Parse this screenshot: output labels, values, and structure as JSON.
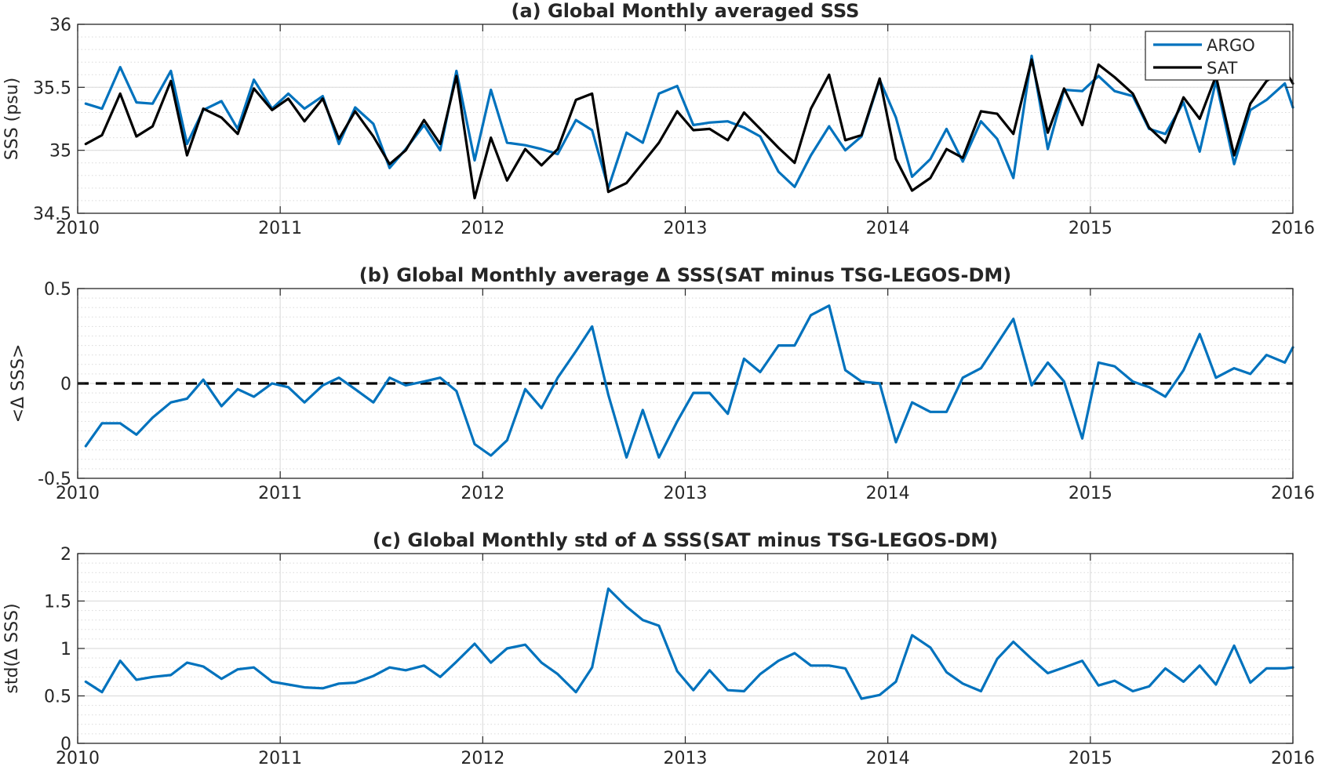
{
  "chart_data": [
    {
      "type": "line",
      "title": "(a) Global Monthly averaged SSS",
      "ylabel": "SSS (psu)",
      "xlabel": "",
      "xlim": [
        2010,
        2016
      ],
      "ylim": [
        34.5,
        36
      ],
      "xticks": [
        "2010",
        "2011",
        "2012",
        "2013",
        "2014",
        "2015",
        "2016"
      ],
      "yticks": [
        "34.5",
        "35",
        "35.5",
        "36"
      ],
      "ytick_values": [
        34.5,
        35,
        35.5,
        36
      ],
      "minor_grid_step": 0.1,
      "grid": true,
      "legend": "top-right",
      "x": [
        2010.04,
        2010.12,
        2010.21,
        2010.29,
        2010.37,
        2010.46,
        2010.54,
        2010.62,
        2010.71,
        2010.79,
        2010.87,
        2010.96,
        2011.04,
        2011.12,
        2011.21,
        2011.29,
        2011.37,
        2011.46,
        2011.54,
        2011.62,
        2011.71,
        2011.79,
        2011.87,
        2011.96,
        2012.04,
        2012.12,
        2012.21,
        2012.29,
        2012.37,
        2012.46,
        2012.54,
        2012.62,
        2012.71,
        2012.79,
        2012.87,
        2012.96,
        2013.04,
        2013.12,
        2013.21,
        2013.29,
        2013.37,
        2013.46,
        2013.54,
        2013.62,
        2013.71,
        2013.79,
        2013.87,
        2013.96,
        2014.04,
        2014.12,
        2014.21,
        2014.29,
        2014.37,
        2014.46,
        2014.54,
        2014.62,
        2014.71,
        2014.79,
        2014.87,
        2014.96,
        2015.04,
        2015.12,
        2015.21,
        2015.29,
        2015.37,
        2015.46,
        2015.54,
        2015.62,
        2015.71,
        2015.79,
        2015.87,
        2015.96,
        2016.0
      ],
      "series": [
        {
          "name": "ARGO",
          "color": "#0072bd",
          "values": [
            35.37,
            35.33,
            35.66,
            35.38,
            35.37,
            35.63,
            35.05,
            35.32,
            35.39,
            35.17,
            35.56,
            35.33,
            35.45,
            35.33,
            35.43,
            35.05,
            35.34,
            35.21,
            34.86,
            35.01,
            35.2,
            35.0,
            35.63,
            34.92,
            35.48,
            35.06,
            35.04,
            35.01,
            34.97,
            35.24,
            35.16,
            34.7,
            35.14,
            35.06,
            35.45,
            35.51,
            35.2,
            35.22,
            35.23,
            35.18,
            35.11,
            34.83,
            34.71,
            34.96,
            35.19,
            35.0,
            35.11,
            35.56,
            35.26,
            34.79,
            34.93,
            35.17,
            34.91,
            35.23,
            35.09,
            34.78,
            35.75,
            35.01,
            35.48,
            35.47,
            35.59,
            35.47,
            35.43,
            35.17,
            35.13,
            35.38,
            34.99,
            35.55,
            34.89,
            35.32,
            35.4,
            35.53,
            35.34
          ]
        },
        {
          "name": "SAT",
          "color": "#000000",
          "values": [
            35.05,
            35.12,
            35.45,
            35.11,
            35.19,
            35.55,
            34.96,
            35.33,
            35.26,
            35.13,
            35.49,
            35.32,
            35.41,
            35.23,
            35.41,
            35.09,
            35.31,
            35.11,
            34.89,
            35.0,
            35.24,
            35.05,
            35.59,
            34.62,
            35.1,
            34.76,
            35.01,
            34.88,
            35.01,
            35.4,
            35.45,
            34.67,
            34.74,
            34.9,
            35.06,
            35.31,
            35.16,
            35.17,
            35.08,
            35.3,
            35.17,
            35.02,
            34.9,
            35.33,
            35.6,
            35.08,
            35.12,
            35.57,
            34.93,
            34.68,
            34.78,
            35.01,
            34.94,
            35.31,
            35.29,
            35.13,
            35.72,
            35.14,
            35.49,
            35.2,
            35.68,
            35.58,
            35.45,
            35.18,
            35.06,
            35.42,
            35.25,
            35.59,
            34.96,
            35.37,
            35.55,
            35.64,
            35.53
          ]
        }
      ]
    },
    {
      "type": "line",
      "title": "(b) Global Monthly average Δ SSS(SAT minus TSG-LEGOS-DM)",
      "ylabel": "<Δ SSS>",
      "xlabel": "",
      "xlim": [
        2010,
        2016
      ],
      "ylim": [
        -0.5,
        0.5
      ],
      "xticks": [
        "2010",
        "2011",
        "2012",
        "2013",
        "2014",
        "2015",
        "2016"
      ],
      "yticks": [
        "-0.5",
        "0",
        "0.5"
      ],
      "ytick_values": [
        -0.5,
        0,
        0.5
      ],
      "minor_grid_step": 0.05,
      "grid": true,
      "reference_line": 0,
      "x": [
        2010.04,
        2010.12,
        2010.21,
        2010.29,
        2010.37,
        2010.46,
        2010.54,
        2010.62,
        2010.71,
        2010.79,
        2010.87,
        2010.96,
        2011.04,
        2011.12,
        2011.21,
        2011.29,
        2011.37,
        2011.46,
        2011.54,
        2011.62,
        2011.71,
        2011.79,
        2011.87,
        2011.96,
        2012.04,
        2012.12,
        2012.21,
        2012.29,
        2012.37,
        2012.46,
        2012.54,
        2012.62,
        2012.71,
        2012.79,
        2012.87,
        2012.96,
        2013.04,
        2013.12,
        2013.21,
        2013.29,
        2013.37,
        2013.46,
        2013.54,
        2013.62,
        2013.71,
        2013.79,
        2013.87,
        2013.96,
        2014.04,
        2014.12,
        2014.21,
        2014.29,
        2014.37,
        2014.46,
        2014.54,
        2014.62,
        2014.71,
        2014.79,
        2014.87,
        2014.96,
        2015.04,
        2015.12,
        2015.21,
        2015.29,
        2015.37,
        2015.46,
        2015.54,
        2015.62,
        2015.71,
        2015.79,
        2015.87,
        2015.96,
        2016.0
      ],
      "series": [
        {
          "color": "#0072bd",
          "values": [
            -0.33,
            -0.21,
            -0.21,
            -0.27,
            -0.18,
            -0.1,
            -0.08,
            0.02,
            -0.12,
            -0.03,
            -0.07,
            0.0,
            -0.02,
            -0.1,
            -0.01,
            0.03,
            -0.03,
            -0.1,
            0.03,
            -0.01,
            0.01,
            0.03,
            -0.04,
            -0.32,
            -0.38,
            -0.3,
            -0.03,
            -0.13,
            0.03,
            0.17,
            0.3,
            -0.06,
            -0.39,
            -0.14,
            -0.39,
            -0.2,
            -0.05,
            -0.05,
            -0.16,
            0.13,
            0.06,
            0.2,
            0.2,
            0.36,
            0.41,
            0.07,
            0.01,
            0.0,
            -0.31,
            -0.1,
            -0.15,
            -0.15,
            0.03,
            0.08,
            0.21,
            0.34,
            -0.01,
            0.11,
            0.01,
            -0.29,
            0.11,
            0.09,
            0.01,
            -0.02,
            -0.07,
            0.07,
            0.26,
            0.03,
            0.08,
            0.05,
            0.15,
            0.11,
            0.19
          ]
        }
      ]
    },
    {
      "type": "line",
      "title": "(c) Global Monthly std of Δ SSS(SAT minus TSG-LEGOS-DM)",
      "ylabel": "std(Δ SSS)",
      "xlabel": "",
      "xlim": [
        2010,
        2016
      ],
      "ylim": [
        0,
        2
      ],
      "xticks": [
        "2010",
        "2011",
        "2012",
        "2013",
        "2014",
        "2015",
        "2016"
      ],
      "yticks": [
        "0",
        "0.5",
        "1",
        "1.5",
        "2"
      ],
      "ytick_values": [
        0,
        0.5,
        1,
        1.5,
        2
      ],
      "minor_grid_step": 0.1,
      "grid": true,
      "x": [
        2010.04,
        2010.12,
        2010.21,
        2010.29,
        2010.37,
        2010.46,
        2010.54,
        2010.62,
        2010.71,
        2010.79,
        2010.87,
        2010.96,
        2011.04,
        2011.12,
        2011.21,
        2011.29,
        2011.37,
        2011.46,
        2011.54,
        2011.62,
        2011.71,
        2011.79,
        2011.87,
        2011.96,
        2012.04,
        2012.12,
        2012.21,
        2012.29,
        2012.37,
        2012.46,
        2012.54,
        2012.62,
        2012.71,
        2012.79,
        2012.87,
        2012.96,
        2013.04,
        2013.12,
        2013.21,
        2013.29,
        2013.37,
        2013.46,
        2013.54,
        2013.62,
        2013.71,
        2013.79,
        2013.87,
        2013.96,
        2014.04,
        2014.12,
        2014.21,
        2014.29,
        2014.37,
        2014.46,
        2014.54,
        2014.62,
        2014.71,
        2014.79,
        2014.87,
        2014.96,
        2015.04,
        2015.12,
        2015.21,
        2015.29,
        2015.37,
        2015.46,
        2015.54,
        2015.62,
        2015.71,
        2015.79,
        2015.87,
        2015.96,
        2016.0
      ],
      "series": [
        {
          "color": "#0072bd",
          "values": [
            0.65,
            0.54,
            0.87,
            0.67,
            0.7,
            0.72,
            0.85,
            0.81,
            0.68,
            0.78,
            0.8,
            0.65,
            0.62,
            0.59,
            0.58,
            0.63,
            0.64,
            0.71,
            0.8,
            0.77,
            0.82,
            0.7,
            0.86,
            1.05,
            0.85,
            1.0,
            1.04,
            0.85,
            0.73,
            0.54,
            0.8,
            1.63,
            1.44,
            1.3,
            1.24,
            0.76,
            0.56,
            0.77,
            0.56,
            0.55,
            0.73,
            0.87,
            0.95,
            0.82,
            0.82,
            0.79,
            0.47,
            0.51,
            0.65,
            1.14,
            1.01,
            0.75,
            0.63,
            0.55,
            0.89,
            1.07,
            0.89,
            0.74,
            0.8,
            0.87,
            0.61,
            0.66,
            0.55,
            0.6,
            0.79,
            0.65,
            0.82,
            0.62,
            1.03,
            0.64,
            0.79,
            0.79,
            0.8
          ]
        }
      ]
    }
  ]
}
